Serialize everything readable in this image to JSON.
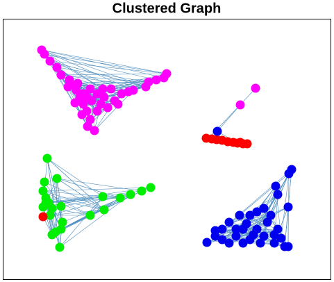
{
  "title": "Clustered Graph"
}
